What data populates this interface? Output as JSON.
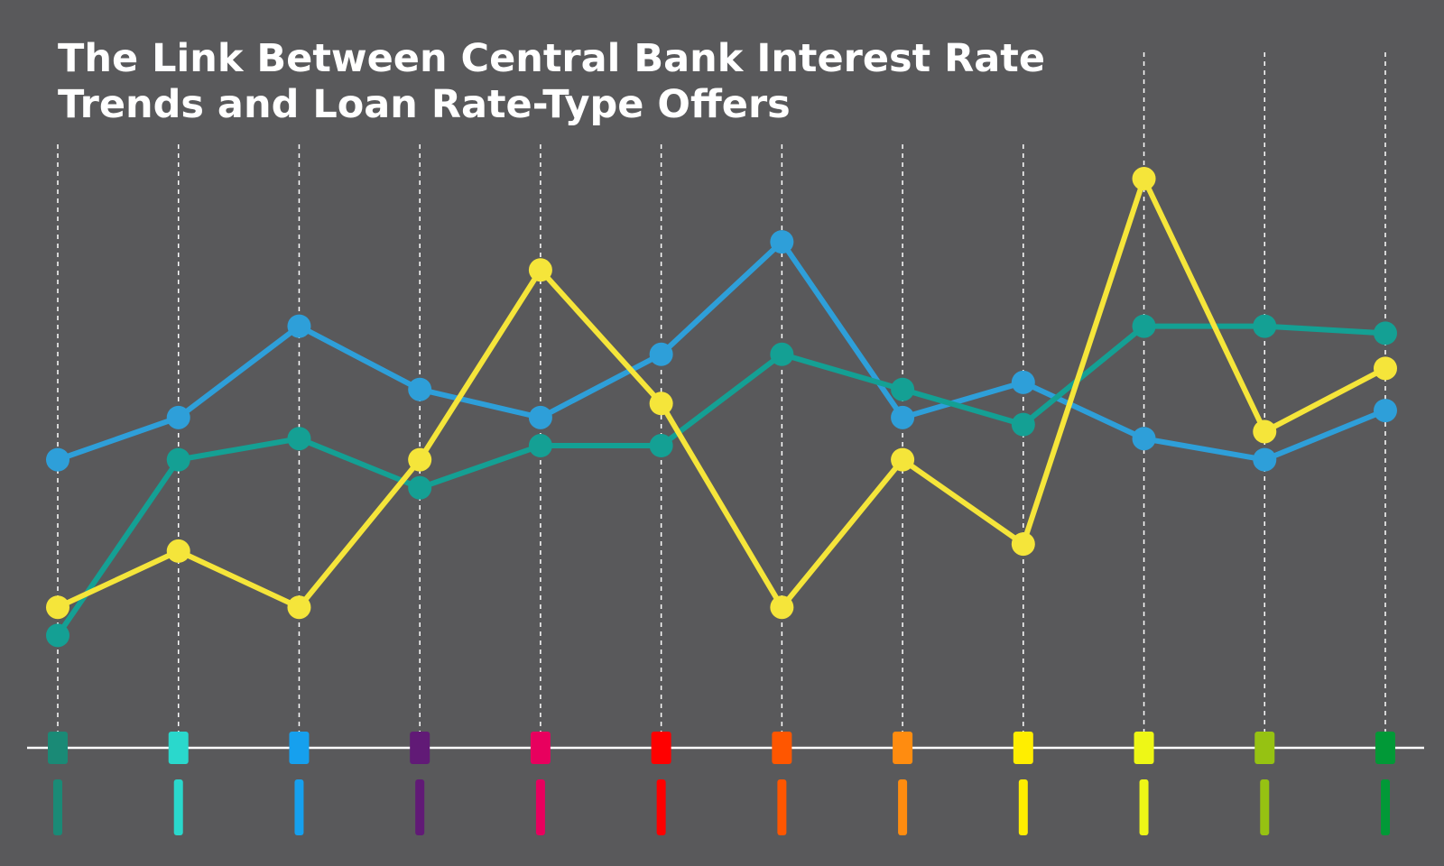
{
  "chart_data": {
    "type": "line",
    "title_lines": [
      "The Link Between Central Bank Interest Rate",
      "Trends and Loan Rate-Type Offers"
    ],
    "xlabel": "",
    "ylabel": "",
    "ylim": [
      0,
      100
    ],
    "grid": "vertical-dashed",
    "legend": "none",
    "category_count": 12,
    "category_colors": [
      "#1a8a76",
      "#2ad8cc",
      "#16a0ee",
      "#611a76",
      "#e8005e",
      "#ff0000",
      "#ff5600",
      "#ff8c10",
      "#ffee00",
      "#eef716",
      "#96c212",
      "#019937"
    ],
    "series": [
      {
        "color": "#2e9fd9",
        "values": [
          41,
          47,
          60,
          51,
          47,
          56,
          72,
          47,
          52,
          44,
          41,
          48
        ]
      },
      {
        "color": "#14a094",
        "values": [
          16,
          41,
          44,
          37,
          43,
          43,
          56,
          51,
          46,
          60,
          60,
          59
        ]
      },
      {
        "color": "#f5e53a",
        "values": [
          20,
          28,
          20,
          41,
          68,
          49,
          20,
          41,
          29,
          81,
          45,
          54
        ]
      }
    ]
  }
}
